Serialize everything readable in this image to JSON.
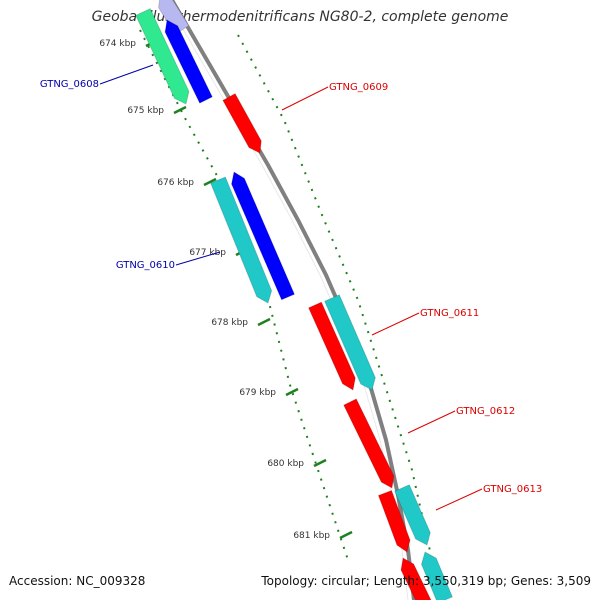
{
  "title": "Geobacillus thermodenitrificans NG80-2, complete genome",
  "accession": "Accession: NC_009328",
  "summary": "Topology: circular; Length: 3,550,319 bp; Genes: 3,509",
  "colors": {
    "backbone": "#808080",
    "forward_gene": "#ff0000",
    "reverse_gene": "#0000ff",
    "cds_highlight": "#20c8c8",
    "green_gene": "#30e890",
    "ticks": "#208020",
    "label_red": "#dd0000",
    "label_blue": "#0000aa"
  },
  "ticks": [
    {
      "label": "674 kbp"
    },
    {
      "label": "675 kbp"
    },
    {
      "label": "676 kbp"
    },
    {
      "label": "677 kbp"
    },
    {
      "label": "678 kbp"
    },
    {
      "label": "679 kbp"
    },
    {
      "label": "680 kbp"
    },
    {
      "label": "681 kbp"
    }
  ],
  "genes": [
    {
      "name": "GTNG_0608",
      "strand": "reverse"
    },
    {
      "name": "GTNG_0609",
      "strand": "forward"
    },
    {
      "name": "GTNG_0610",
      "strand": "reverse"
    },
    {
      "name": "GTNG_0611",
      "strand": "forward"
    },
    {
      "name": "GTNG_0612",
      "strand": "forward"
    },
    {
      "name": "GTNG_0613",
      "strand": "forward"
    }
  ]
}
